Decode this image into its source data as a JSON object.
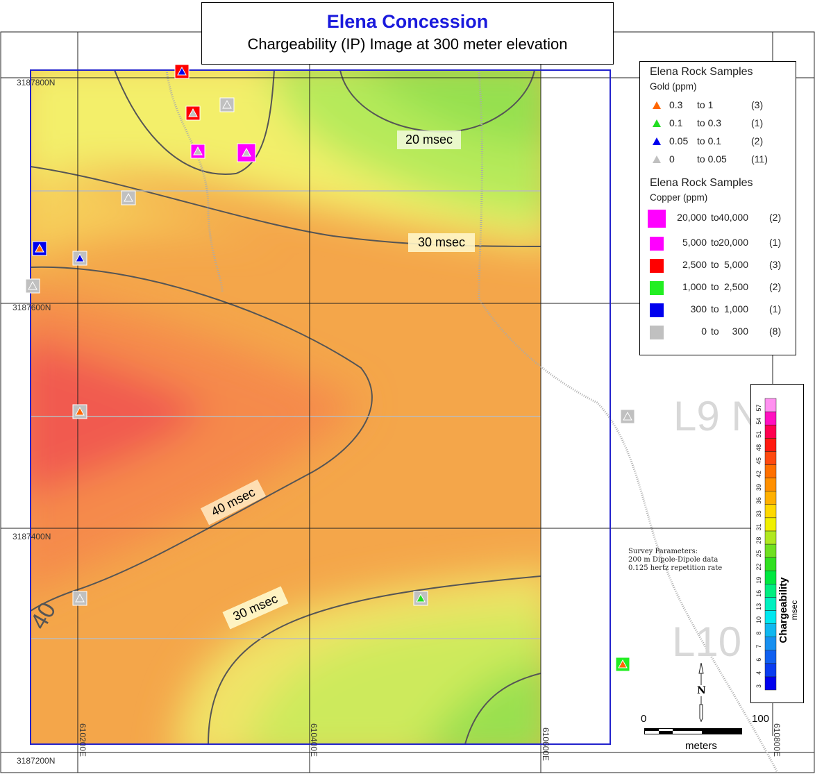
{
  "title": {
    "main": "Elena Concession",
    "sub": "Chargeability (IP) Image at 300 meter elevation"
  },
  "grid": {
    "northing": [
      "3187800N",
      "3187600N",
      "3187400N",
      "3187200N"
    ],
    "easting": [
      "610200E",
      "610400E",
      "610600E",
      "610800E"
    ]
  },
  "lines": [
    "L9 N",
    "L10"
  ],
  "contour_labels": [
    "20 msec",
    "30 msec",
    "40 msec",
    "30 msec",
    "40"
  ],
  "gold_legend": {
    "title": "Elena Rock Samples",
    "subtitle": "Gold (ppm)",
    "items": [
      {
        "from": "0.3",
        "to": "to  1",
        "count": "(3)",
        "color": "#ff6600"
      },
      {
        "from": "0.1",
        "to": "to  0.3",
        "count": "(1)",
        "color": "#22dd22"
      },
      {
        "from": "0.05",
        "to": "to  0.1",
        "count": "(2)",
        "color": "#0000ee"
      },
      {
        "from": "0",
        "to": "to  0.05",
        "count": "(11)",
        "color": "#c0c0c0"
      }
    ]
  },
  "copper_legend": {
    "title": "Elena Rock Samples",
    "subtitle": "Copper (ppm)",
    "items": [
      {
        "from": "20,000",
        "to": "to",
        "upper": "40,000",
        "count": "(2)",
        "color": "#ff00ff"
      },
      {
        "from": "5,000",
        "to": "to",
        "upper": "20,000",
        "count": "(1)",
        "color": "#ff00ff"
      },
      {
        "from": "2,500",
        "to": "to",
        "upper": "5,000",
        "count": "(3)",
        "color": "#ff0000"
      },
      {
        "from": "1,000",
        "to": "to",
        "upper": "2,500",
        "count": "(2)",
        "color": "#22ee22"
      },
      {
        "from": "300",
        "to": "to",
        "upper": "1,000",
        "count": "(1)",
        "color": "#0000ee"
      },
      {
        "from": "0",
        "to": "to",
        "upper": "300",
        "count": "(8)",
        "color": "#c0c0c0"
      }
    ]
  },
  "colorbar": {
    "title": "Chargeability",
    "unit": "msec",
    "ticks": [
      "3",
      "4",
      "6",
      "7",
      "8",
      "10",
      "13",
      "16",
      "19",
      "22",
      "25",
      "28",
      "31",
      "33",
      "36",
      "39",
      "42",
      "45",
      "48",
      "51",
      "54",
      "57"
    ]
  },
  "survey": [
    "Survey Parameters:",
    "200 m Dipole-Dipole data",
    "0.125 hertz repetition rate"
  ],
  "scale": {
    "start": "0",
    "end": "100",
    "unit": "meters"
  },
  "north": "N",
  "samples": [
    {
      "cu": "#ff0000",
      "au": "#0000ee"
    },
    {
      "cu": "#ff0000",
      "au": "#c0c0c0"
    },
    {
      "cu": "#c0c0c0",
      "au": "#c0c0c0"
    },
    {
      "cu": "#ff00ff",
      "au": "#c0c0c0"
    },
    {
      "cu": "#ff00ff",
      "au": "#c0c0c0"
    },
    {
      "cu": "#c0c0c0",
      "au": "#c0c0c0"
    },
    {
      "cu": "#0000ee",
      "au": "#ff6600"
    },
    {
      "cu": "#c0c0c0",
      "au": "#0000ee"
    },
    {
      "cu": "#c0c0c0",
      "au": "#c0c0c0"
    },
    {
      "cu": "#c0c0c0",
      "au": "#ff6600"
    },
    {
      "cu": "#c0c0c0",
      "au": "#c0c0c0"
    },
    {
      "cu": "#c0c0c0",
      "au": "#22dd22"
    },
    {
      "cu": "#c0c0c0",
      "au": "#c0c0c0"
    },
    {
      "cu": "#22ee22",
      "au": "#ff6600"
    }
  ]
}
